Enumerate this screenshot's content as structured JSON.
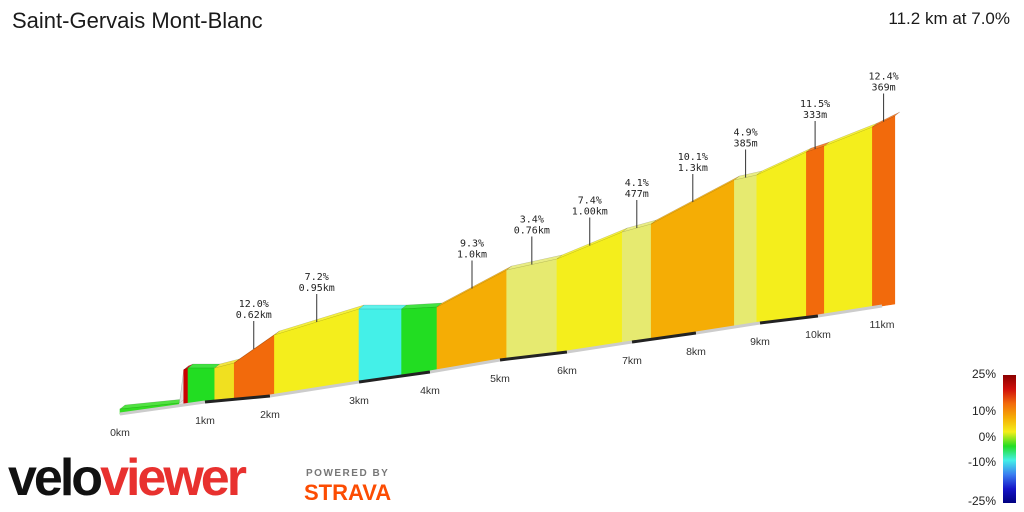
{
  "header": {
    "title": "Saint-Gervais Mont-Blanc",
    "summary": "11.2 km at 7.0%"
  },
  "branding": {
    "logo_part1": "velo",
    "logo_part2": "viewer",
    "powered_by": "POWERED BY",
    "strava": "STRAVA"
  },
  "colors": {
    "accent_red": "#e8312f",
    "strava_orange": "#fc4c02"
  },
  "chart_data": {
    "type": "area",
    "xlabel": "",
    "ylabel": "",
    "x_unit": "km",
    "segments": [
      {
        "start": 0.0,
        "end": 0.7,
        "color": "#33dd22"
      },
      {
        "start": 0.7,
        "end": 0.75,
        "color": "#e0e0e0"
      },
      {
        "start": 0.75,
        "end": 0.8,
        "color": "#cc0000"
      },
      {
        "start": 0.8,
        "end": 1.15,
        "color": "#22dd22"
      },
      {
        "start": 1.15,
        "end": 1.45,
        "color": "#f0e020"
      },
      {
        "start": 1.45,
        "end": 2.05,
        "color": "#f26a0c",
        "label1": "12.0%",
        "label2": "0.62km"
      },
      {
        "start": 2.05,
        "end": 3.0,
        "color": "#f4ee1c",
        "label1": "7.2%",
        "label2": "0.95km"
      },
      {
        "start": 3.0,
        "end": 3.6,
        "color": "#44f0e8"
      },
      {
        "start": 3.6,
        "end": 4.1,
        "color": "#22dd22"
      },
      {
        "start": 4.1,
        "end": 5.1,
        "color": "#f5ad05",
        "label1": "9.3%",
        "label2": "1.0km"
      },
      {
        "start": 5.1,
        "end": 5.85,
        "color": "#e6ea70",
        "label1": "3.4%",
        "label2": "0.76km"
      },
      {
        "start": 5.85,
        "end": 6.85,
        "color": "#f4ee1c",
        "label1": "7.4%",
        "label2": "1.00km"
      },
      {
        "start": 6.85,
        "end": 7.3,
        "color": "#e6ea70",
        "label1": "4.1%",
        "label2": "477m"
      },
      {
        "start": 7.3,
        "end": 8.6,
        "color": "#f5ad05",
        "label1": "10.1%",
        "label2": "1.3km"
      },
      {
        "start": 8.6,
        "end": 8.95,
        "color": "#e6ea70",
        "label1": "4.9%",
        "label2": "385m"
      },
      {
        "start": 8.95,
        "end": 9.8,
        "color": "#f4ee1c"
      },
      {
        "start": 9.8,
        "end": 10.1,
        "color": "#f26a0c",
        "label1": "11.5%",
        "label2": "333m"
      },
      {
        "start": 10.1,
        "end": 10.85,
        "color": "#f4ee1c"
      },
      {
        "start": 10.85,
        "end": 11.2,
        "color": "#f26a0c",
        "label1": "12.4%",
        "label2": "369m"
      }
    ],
    "km_ticks": [
      {
        "km": 0,
        "label": "0km"
      },
      {
        "km": 1,
        "label": "1km"
      },
      {
        "km": 2,
        "label": "2km"
      },
      {
        "km": 3,
        "label": "3km"
      },
      {
        "km": 4,
        "label": "4km"
      },
      {
        "km": 5,
        "label": "5km"
      },
      {
        "km": 6,
        "label": "6km"
      },
      {
        "km": 7,
        "label": "7km"
      },
      {
        "km": 8,
        "label": "8km"
      },
      {
        "km": 9,
        "label": "9km"
      },
      {
        "km": 10,
        "label": "10km"
      },
      {
        "km": 11,
        "label": "11km"
      }
    ],
    "color_scale": {
      "labels": [
        "25%",
        "10%",
        "0%",
        "-10%",
        "-25%"
      ],
      "stops": [
        "#8b0000",
        "#d0100b",
        "#f26a0c",
        "#f5ad05",
        "#f4ee1c",
        "#22dd22",
        "#44f0e8",
        "#3a7df0",
        "#1414c8",
        "#000080"
      ]
    }
  }
}
